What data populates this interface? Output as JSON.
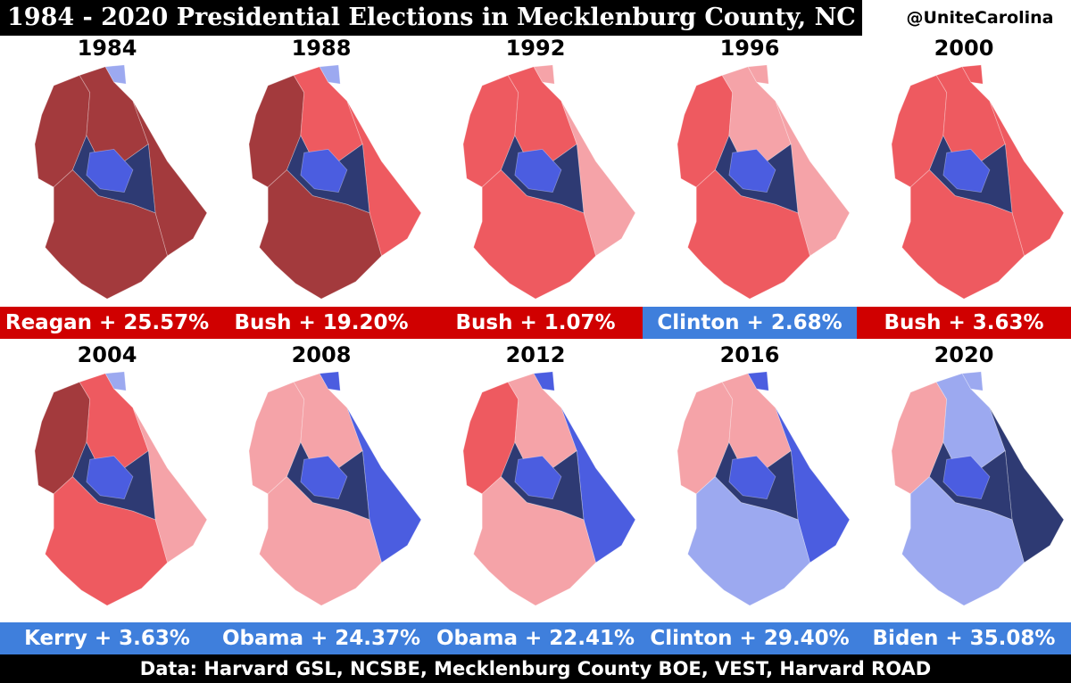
{
  "title": "1984 - 2020 Presidential Elections in Mecklenburg County, NC",
  "handle": "@UniteCarolina",
  "footer": "Data: Harvard GSL, NCSBE, Mecklenburg County BOE, VEST, Harvard ROAD",
  "colors": {
    "rep_dark": "#a33a3d",
    "rep_mid": "#ee5a60",
    "rep_light": "#f5a3a8",
    "dem_light": "#9ca9f0",
    "dem_mid": "#4b5de0",
    "dem_dark": "#2e3a73",
    "rep_banner": "#d00000",
    "dem_banner": "#3f7fdc"
  },
  "elections": [
    {
      "year": "1984",
      "result": "Reagan + 25.57%",
      "winner": "rep",
      "leanings": {
        "north": "rep_dark",
        "northwest": "rep_dark",
        "center": "dem_dark",
        "inner": "dem_mid",
        "south": "rep_dark",
        "east": "rep_dark",
        "northtip": "dem_light"
      }
    },
    {
      "year": "1988",
      "result": "Bush + 19.20%",
      "winner": "rep",
      "leanings": {
        "north": "rep_mid",
        "northwest": "rep_dark",
        "center": "dem_dark",
        "inner": "dem_mid",
        "south": "rep_dark",
        "east": "rep_mid",
        "northtip": "dem_light"
      }
    },
    {
      "year": "1992",
      "result": "Bush + 1.07%",
      "winner": "rep",
      "leanings": {
        "north": "rep_mid",
        "northwest": "rep_mid",
        "center": "dem_dark",
        "inner": "dem_mid",
        "south": "rep_mid",
        "east": "rep_light",
        "northtip": "rep_light"
      }
    },
    {
      "year": "1996",
      "result": "Clinton + 2.68%",
      "winner": "dem",
      "leanings": {
        "north": "rep_light",
        "northwest": "rep_mid",
        "center": "dem_dark",
        "inner": "dem_mid",
        "south": "rep_mid",
        "east": "rep_light",
        "northtip": "rep_light"
      }
    },
    {
      "year": "2000",
      "result": "Bush + 3.63%",
      "winner": "rep",
      "leanings": {
        "north": "rep_mid",
        "northwest": "rep_mid",
        "center": "dem_dark",
        "inner": "dem_mid",
        "south": "rep_mid",
        "east": "rep_mid",
        "northtip": "rep_mid"
      }
    },
    {
      "year": "2004",
      "result": "Kerry + 3.63%",
      "winner": "dem",
      "leanings": {
        "north": "rep_mid",
        "northwest": "rep_dark",
        "center": "dem_dark",
        "inner": "dem_mid",
        "south": "rep_mid",
        "east": "rep_light",
        "northtip": "dem_light"
      }
    },
    {
      "year": "2008",
      "result": "Obama + 24.37%",
      "winner": "dem",
      "leanings": {
        "north": "rep_light",
        "northwest": "rep_light",
        "center": "dem_dark",
        "inner": "dem_mid",
        "south": "rep_light",
        "east": "dem_mid",
        "northtip": "dem_mid"
      }
    },
    {
      "year": "2012",
      "result": "Obama + 22.41%",
      "winner": "dem",
      "leanings": {
        "north": "rep_light",
        "northwest": "rep_mid",
        "center": "dem_dark",
        "inner": "dem_mid",
        "south": "rep_light",
        "east": "dem_mid",
        "northtip": "dem_mid"
      }
    },
    {
      "year": "2016",
      "result": "Clinton + 29.40%",
      "winner": "dem",
      "leanings": {
        "north": "rep_light",
        "northwest": "rep_light",
        "center": "dem_dark",
        "inner": "dem_mid",
        "south": "dem_light",
        "east": "dem_mid",
        "northtip": "dem_mid"
      }
    },
    {
      "year": "2020",
      "result": "Biden + 35.08%",
      "winner": "dem",
      "leanings": {
        "north": "dem_light",
        "northwest": "rep_light",
        "center": "dem_dark",
        "inner": "dem_mid",
        "south": "dem_light",
        "east": "dem_dark",
        "northtip": "dem_light"
      }
    }
  ]
}
